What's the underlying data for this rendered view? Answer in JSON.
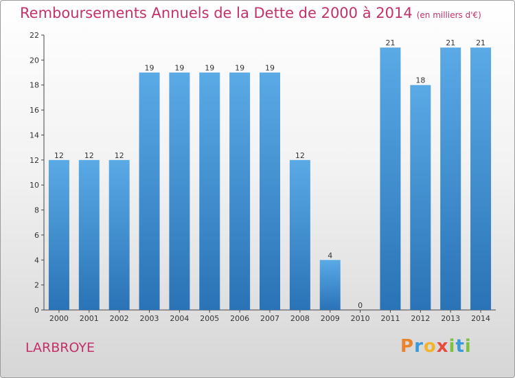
{
  "title": "Remboursements Annuels de la Dette de 2000 à 2014",
  "unit_note": "(en milliers d'€)",
  "location": "LARBROYE",
  "brand": {
    "letters": [
      "P",
      "r",
      "o",
      "x",
      "i",
      "t",
      "i"
    ],
    "colors": [
      "#e8842a",
      "#3a9ad9",
      "#f1b42f",
      "#e84a3c",
      "#7cc242",
      "#3a9ad9",
      "#7cc242"
    ]
  },
  "colors": {
    "bar_top": "#5aaae6",
    "bar_bottom": "#2a73b6",
    "text": "#c4306a",
    "axis": "#444444"
  },
  "chart_data": {
    "type": "bar",
    "categories": [
      "2000",
      "2001",
      "2002",
      "2003",
      "2004",
      "2005",
      "2006",
      "2007",
      "2008",
      "2009",
      "2010",
      "2011",
      "2012",
      "2013",
      "2014"
    ],
    "values": [
      12,
      12,
      12,
      19,
      19,
      19,
      19,
      19,
      12,
      4,
      0,
      21,
      18,
      21,
      21
    ],
    "ylim": [
      0,
      22
    ],
    "yticks": [
      0,
      2,
      4,
      6,
      8,
      10,
      12,
      14,
      16,
      18,
      20,
      22
    ],
    "grid": false,
    "data_labels": true
  }
}
